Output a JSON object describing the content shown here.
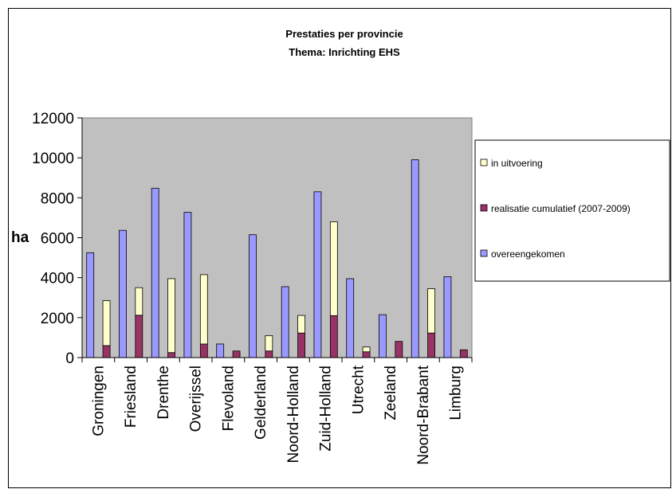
{
  "chart_data": {
    "type": "bar",
    "title": "Prestaties per provincie",
    "subtitle": "Thema: Inrichting EHS",
    "ylabel": "ha",
    "xlabel": "",
    "ylim": [
      0,
      12000
    ],
    "yticks": [
      0,
      2000,
      4000,
      6000,
      8000,
      10000,
      12000
    ],
    "grid": false,
    "legend_position": "right",
    "categories": [
      "Groningen",
      "Friesland",
      "Drenthe",
      "Overijssel",
      "Flevoland",
      "Gelderland",
      "Noord-Holland",
      "Zuid-Holland",
      "Utrecht",
      "Zeeland",
      "Noord-Brabant",
      "Limburg"
    ],
    "series": [
      {
        "name": "overeengekomen",
        "color": "#9999ff",
        "values": [
          5250,
          6370,
          8480,
          7270,
          680,
          6150,
          3550,
          8300,
          3950,
          2150,
          9900,
          4050
        ]
      },
      {
        "name": "realisatie cumulatief (2007-2009)",
        "color": "#993366",
        "values": [
          600,
          2120,
          250,
          680,
          330,
          330,
          1230,
          2100,
          290,
          810,
          1230,
          390
        ]
      },
      {
        "name": "in uitvoering",
        "color": "#ffffcc",
        "values": [
          2250,
          1380,
          3700,
          3470,
          0,
          770,
          880,
          4700,
          240,
          0,
          2220,
          0
        ]
      }
    ],
    "legend_order": [
      "in uitvoering",
      "realisatie cumulatief (2007-2009)",
      "overeengekomen"
    ],
    "colors": {
      "plot_background": "#c0c0c0",
      "page_background": "#ffffff"
    }
  }
}
